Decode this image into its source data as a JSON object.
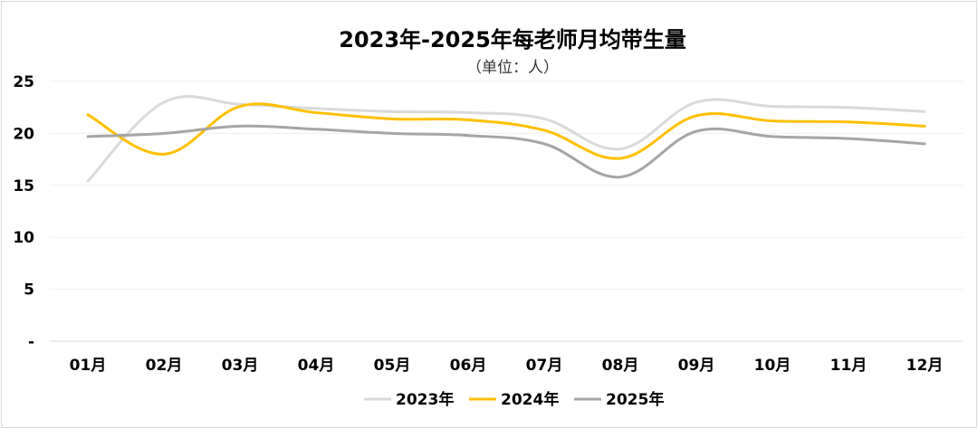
{
  "chart_data": {
    "type": "line",
    "title": "2023年-2025年每老师月均带生量",
    "subtitle": "（单位：人）",
    "xlabel": "",
    "ylabel": "",
    "categories": [
      "01月",
      "02月",
      "03月",
      "04月",
      "05月",
      "06月",
      "07月",
      "08月",
      "09月",
      "10月",
      "11月",
      "12月"
    ],
    "ylim": [
      0,
      25
    ],
    "yticks": [
      0,
      5,
      10,
      15,
      20,
      25
    ],
    "ytick_labels": [
      "-",
      "5",
      "10",
      "15",
      "20",
      "25"
    ],
    "grid": true,
    "legend_position": "bottom",
    "series": [
      {
        "name": "2023年",
        "color": "#d9d9d9",
        "values": [
          15.4,
          23.0,
          22.8,
          22.4,
          22.1,
          22.0,
          21.4,
          18.5,
          23.0,
          22.6,
          22.5,
          22.1
        ]
      },
      {
        "name": "2024年",
        "color": "#ffc000",
        "values": [
          21.8,
          18.0,
          22.6,
          22.0,
          21.4,
          21.3,
          20.3,
          17.6,
          21.7,
          21.2,
          21.1,
          20.7
        ]
      },
      {
        "name": "2025年",
        "color": "#a5a5a5",
        "values": [
          19.7,
          20.0,
          20.7,
          20.4,
          20.0,
          19.8,
          19.0,
          15.8,
          20.2,
          19.7,
          19.5,
          19.0
        ]
      }
    ]
  }
}
